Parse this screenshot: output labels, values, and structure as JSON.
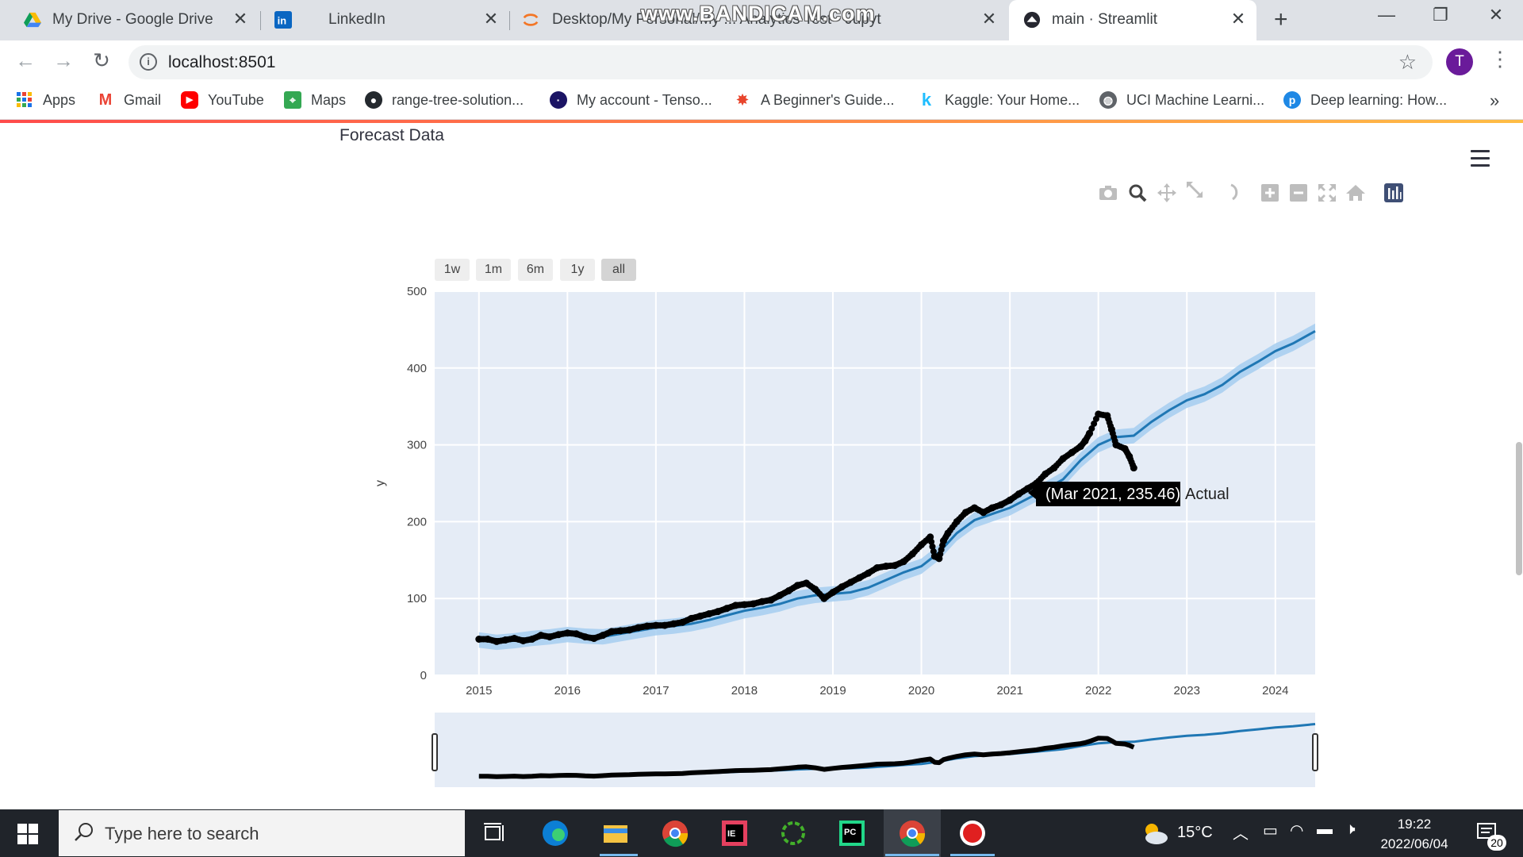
{
  "browser": {
    "tabs": [
      {
        "title": "My Drive - Google Drive",
        "icon": "google-drive-icon"
      },
      {
        "title": "LinkedIn",
        "icon": "linkedin-icon"
      },
      {
        "title": "Desktop/My Personal/My ... Analytics Test - Jupyt",
        "icon": "jupyter-icon"
      },
      {
        "title": "main · Streamlit",
        "icon": "streamlit-icon",
        "active": true
      }
    ],
    "watermark": "www.BANDICAM.com",
    "url": "localhost:8501",
    "avatar_letter": "T",
    "bookmarks": [
      {
        "label": "Apps",
        "icon": "apps-grid-icon"
      },
      {
        "label": "Gmail",
        "icon": "gmail-icon"
      },
      {
        "label": "YouTube",
        "icon": "youtube-icon"
      },
      {
        "label": "Maps",
        "icon": "maps-icon"
      },
      {
        "label": "range-tree-solution...",
        "icon": "github-icon"
      },
      {
        "label": "My account - Tenso...",
        "icon": "tensor-icon"
      },
      {
        "label": "A Beginner's Guide...",
        "icon": "guide-icon"
      },
      {
        "label": "Kaggle: Your Home...",
        "icon": "kaggle-icon"
      },
      {
        "label": "UCI Machine Learni...",
        "icon": "uci-icon"
      },
      {
        "label": "Deep learning: How...",
        "icon": "deep-learning-icon"
      }
    ]
  },
  "page": {
    "section_title": "Forecast Data",
    "range_buttons": [
      "1w",
      "1m",
      "6m",
      "1y",
      "all"
    ],
    "selected_range": "all",
    "modebar_icons": [
      "camera-icon",
      "zoom-icon",
      "pan-icon",
      "autoscale-icon",
      "lasso-icon",
      "zoom-in-icon",
      "zoom-out-icon",
      "reset-axes-icon",
      "home-icon",
      "plotly-logo-icon"
    ],
    "tooltip": {
      "text": "(Mar 2021, 235.46)",
      "label": "Actual"
    }
  },
  "chart_data": {
    "type": "line",
    "title": "",
    "xlabel": "",
    "ylabel": "y",
    "xlim": [
      2014.5,
      2024.45
    ],
    "ylim": [
      0,
      500
    ],
    "x_ticks": [
      "2015",
      "2016",
      "2017",
      "2018",
      "2019",
      "2020",
      "2021",
      "2022",
      "2023",
      "2024"
    ],
    "y_ticks": [
      0,
      100,
      200,
      300,
      400,
      500
    ],
    "grid": true,
    "rangeslider": true,
    "series": [
      {
        "name": "Actual",
        "color": "#000000",
        "style": "markers",
        "x": [
          2015.0,
          2015.1,
          2015.2,
          2015.3,
          2015.4,
          2015.5,
          2015.6,
          2015.7,
          2015.8,
          2015.9,
          2016.0,
          2016.1,
          2016.2,
          2016.3,
          2016.4,
          2016.5,
          2016.6,
          2016.7,
          2016.8,
          2016.9,
          2017.0,
          2017.1,
          2017.2,
          2017.3,
          2017.4,
          2017.5,
          2017.6,
          2017.7,
          2017.8,
          2017.9,
          2018.0,
          2018.1,
          2018.2,
          2018.3,
          2018.4,
          2018.5,
          2018.6,
          2018.7,
          2018.8,
          2018.9,
          2019.0,
          2019.1,
          2019.2,
          2019.3,
          2019.4,
          2019.5,
          2019.6,
          2019.7,
          2019.8,
          2019.9,
          2020.0,
          2020.1,
          2020.15,
          2020.2,
          2020.25,
          2020.3,
          2020.4,
          2020.5,
          2020.6,
          2020.7,
          2020.8,
          2020.9,
          2021.0,
          2021.1,
          2021.2,
          2021.3,
          2021.4,
          2021.5,
          2021.6,
          2021.7,
          2021.8,
          2021.85,
          2021.9,
          2022.0,
          2022.1,
          2022.15,
          2022.2,
          2022.3,
          2022.35,
          2022.4
        ],
        "y": [
          47,
          47,
          44,
          46,
          48,
          45,
          47,
          52,
          50,
          53,
          55,
          54,
          50,
          48,
          52,
          57,
          58,
          59,
          62,
          64,
          65,
          65,
          67,
          69,
          74,
          77,
          80,
          83,
          87,
          91,
          92,
          93,
          96,
          98,
          104,
          110,
          117,
          120,
          112,
          100,
          108,
          115,
          121,
          127,
          133,
          140,
          142,
          143,
          148,
          158,
          170,
          180,
          155,
          152,
          175,
          185,
          200,
          212,
          218,
          212,
          218,
          222,
          228,
          236,
          243,
          250,
          262,
          270,
          282,
          290,
          298,
          305,
          315,
          340,
          338,
          320,
          300,
          295,
          285,
          270
        ]
      },
      {
        "name": "Forecast",
        "color": "#1f77b4",
        "style": "line",
        "x": [
          2015.0,
          2015.2,
          2015.4,
          2015.6,
          2015.8,
          2016.0,
          2016.2,
          2016.4,
          2016.6,
          2016.8,
          2017.0,
          2017.2,
          2017.4,
          2017.6,
          2017.8,
          2018.0,
          2018.2,
          2018.4,
          2018.6,
          2018.8,
          2019.0,
          2019.2,
          2019.4,
          2019.6,
          2019.8,
          2020.0,
          2020.2,
          2020.4,
          2020.6,
          2020.8,
          2021.0,
          2021.2,
          2021.4,
          2021.6,
          2021.8,
          2022.0,
          2022.2,
          2022.4,
          2022.6,
          2022.8,
          2023.0,
          2023.2,
          2023.4,
          2023.6,
          2023.8,
          2024.0,
          2024.2,
          2024.45
        ],
        "y": [
          46,
          43,
          45,
          48,
          50,
          53,
          51,
          50,
          54,
          58,
          62,
          64,
          67,
          72,
          78,
          84,
          88,
          93,
          100,
          104,
          106,
          108,
          114,
          124,
          134,
          142,
          160,
          185,
          202,
          210,
          218,
          230,
          242,
          255,
          280,
          300,
          310,
          312,
          330,
          345,
          358,
          366,
          378,
          395,
          408,
          422,
          432,
          448
        ],
        "band": 10
      }
    ]
  },
  "taskbar": {
    "search_placeholder": "Type here to search",
    "weather_temp": "15°C",
    "time": "19:22",
    "date": "2022/06/04",
    "notifications": "20",
    "apps": [
      "task-view-icon",
      "edge-icon",
      "file-explorer-icon",
      "chrome-icon",
      "intellij-icon",
      "jupyter-ring-icon",
      "pycharm-icon",
      "chrome-active-icon",
      "bandicam-record-icon"
    ]
  }
}
